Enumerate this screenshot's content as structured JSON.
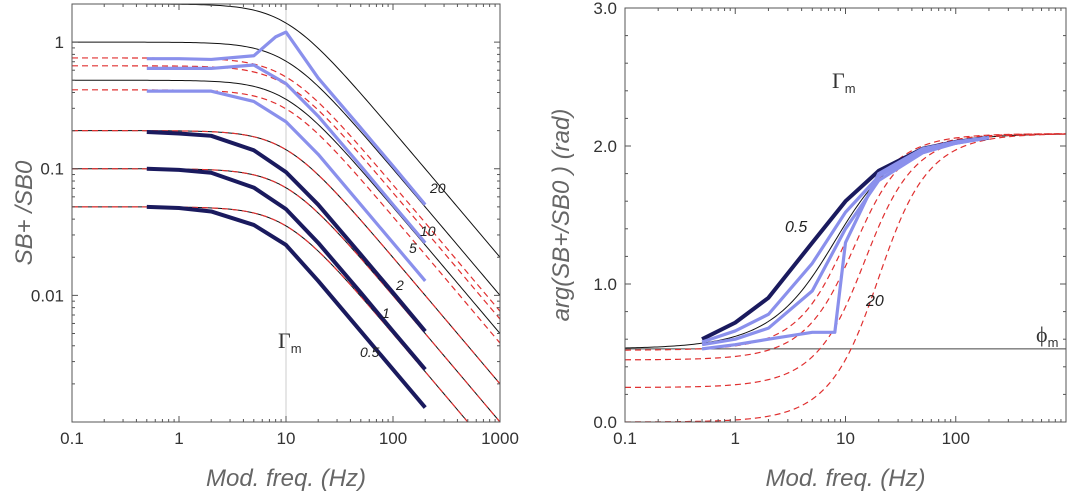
{
  "chart_data": [
    {
      "type": "line",
      "xscale": "log",
      "yscale": "log",
      "xlim": [
        0.1,
        1000
      ],
      "ylim": [
        0.001,
        2
      ],
      "xlabel": "Mod. freq. (Hz)",
      "ylabel": "SB+ /SB0",
      "xticks": [
        0.1,
        1,
        10,
        100,
        1000
      ],
      "xtick_labels": [
        "0.1",
        "1",
        "10",
        "100",
        "1000"
      ],
      "yticks": [
        0.01,
        0.1,
        1
      ],
      "ytick_labels": [
        "0.01",
        "0.1",
        "1"
      ],
      "gamma_m": 10,
      "annotation": {
        "symbol": "Γ",
        "sub": "m"
      },
      "theory_plateaus": [
        0.05,
        0.1,
        0.2,
        0.5,
        1.0,
        2.0
      ],
      "model_plateaus": [
        0.05,
        0.1,
        0.2,
        0.42,
        0.65,
        0.75
      ],
      "series": [
        {
          "name": "0.5",
          "style": "dark",
          "x": [
            0.5,
            1,
            2,
            5,
            10,
            20,
            50,
            100,
            200
          ],
          "y": [
            0.05,
            0.049,
            0.046,
            0.036,
            0.025,
            0.013,
            0.0052,
            0.0026,
            0.0013
          ]
        },
        {
          "name": "1",
          "style": "dark",
          "x": [
            0.5,
            1,
            2,
            5,
            10,
            20,
            50,
            100,
            200
          ],
          "y": [
            0.1,
            0.098,
            0.093,
            0.071,
            0.048,
            0.026,
            0.0105,
            0.0052,
            0.0026
          ]
        },
        {
          "name": "2",
          "style": "dark",
          "x": [
            0.5,
            1,
            2,
            5,
            10,
            20,
            50,
            100,
            200
          ],
          "y": [
            0.195,
            0.19,
            0.182,
            0.14,
            0.094,
            0.052,
            0.021,
            0.0105,
            0.0052
          ]
        },
        {
          "name": "5",
          "style": "light",
          "x": [
            0.5,
            1,
            2,
            5,
            10,
            20,
            50,
            100,
            200
          ],
          "y": [
            0.41,
            0.41,
            0.41,
            0.34,
            0.235,
            0.13,
            0.052,
            0.026,
            0.013
          ]
        },
        {
          "name": "10",
          "style": "light",
          "x": [
            0.5,
            1,
            2,
            5,
            10,
            20,
            50,
            100,
            200
          ],
          "y": [
            0.62,
            0.62,
            0.62,
            0.66,
            0.47,
            0.26,
            0.105,
            0.052,
            0.026
          ]
        },
        {
          "name": "20",
          "style": "light",
          "x": [
            0.5,
            1,
            2,
            5,
            8,
            10,
            20,
            50,
            100,
            200
          ],
          "y": [
            0.74,
            0.74,
            0.73,
            0.78,
            1.1,
            1.2,
            0.52,
            0.21,
            0.105,
            0.052
          ]
        }
      ],
      "curve_labels": [
        "0.5",
        "1",
        "2",
        "5",
        "10",
        "20"
      ]
    },
    {
      "type": "line",
      "xscale": "log",
      "yscale": "linear",
      "xlim": [
        0.1,
        1000
      ],
      "ylim": [
        0,
        3
      ],
      "xlabel": "Mod. freq. (Hz)",
      "ylabel": "arg(SB+/SB0 )   (rad)",
      "xticks": [
        0.1,
        1,
        10,
        100
      ],
      "xtick_labels": [
        "0.1",
        "1",
        "10",
        "100"
      ],
      "yticks": [
        0,
        1,
        2,
        3
      ],
      "ytick_labels": [
        "0.0",
        "1.0",
        "2.0",
        "3.0"
      ],
      "phi_m": 0.53,
      "annotation": {
        "symbol": "Γ",
        "sub": "m"
      },
      "phi_annotation": {
        "symbol": "ϕ",
        "sub": "m"
      },
      "theory_limits": {
        "low": 0.53,
        "high": 2.09
      },
      "model_curves": [
        {
          "low": 0.52,
          "fc": 10
        },
        {
          "low": 0.45,
          "fc": 12
        },
        {
          "low": 0.25,
          "fc": 15
        },
        {
          "low": 0.0,
          "fc": 20
        }
      ],
      "series": [
        {
          "name": "0.5",
          "style": "dark",
          "x": [
            0.5,
            1,
            2,
            5,
            10,
            20,
            50,
            100,
            200
          ],
          "y": [
            0.6,
            0.72,
            0.9,
            1.3,
            1.6,
            1.82,
            1.98,
            2.03,
            2.06
          ]
        },
        {
          "name": "2",
          "style": "light",
          "x": [
            0.5,
            1,
            2,
            5,
            10,
            20,
            50,
            100,
            200
          ],
          "y": [
            0.58,
            0.66,
            0.78,
            1.15,
            1.52,
            1.78,
            1.96,
            2.02,
            2.06
          ]
        },
        {
          "name": "5",
          "style": "light",
          "x": [
            0.5,
            1,
            2,
            5,
            10,
            20,
            50,
            100,
            200
          ],
          "y": [
            0.56,
            0.6,
            0.68,
            0.95,
            1.4,
            1.75,
            1.95,
            2.02,
            2.06
          ]
        },
        {
          "name": "20",
          "style": "light",
          "x": [
            0.5,
            1,
            2,
            5,
            8,
            10,
            20,
            50,
            100,
            200
          ],
          "y": [
            0.53,
            0.56,
            0.6,
            0.65,
            0.65,
            1.3,
            1.8,
            1.98,
            2.03,
            2.06
          ]
        }
      ],
      "curve_labels": [
        "0.5",
        "20"
      ]
    }
  ]
}
